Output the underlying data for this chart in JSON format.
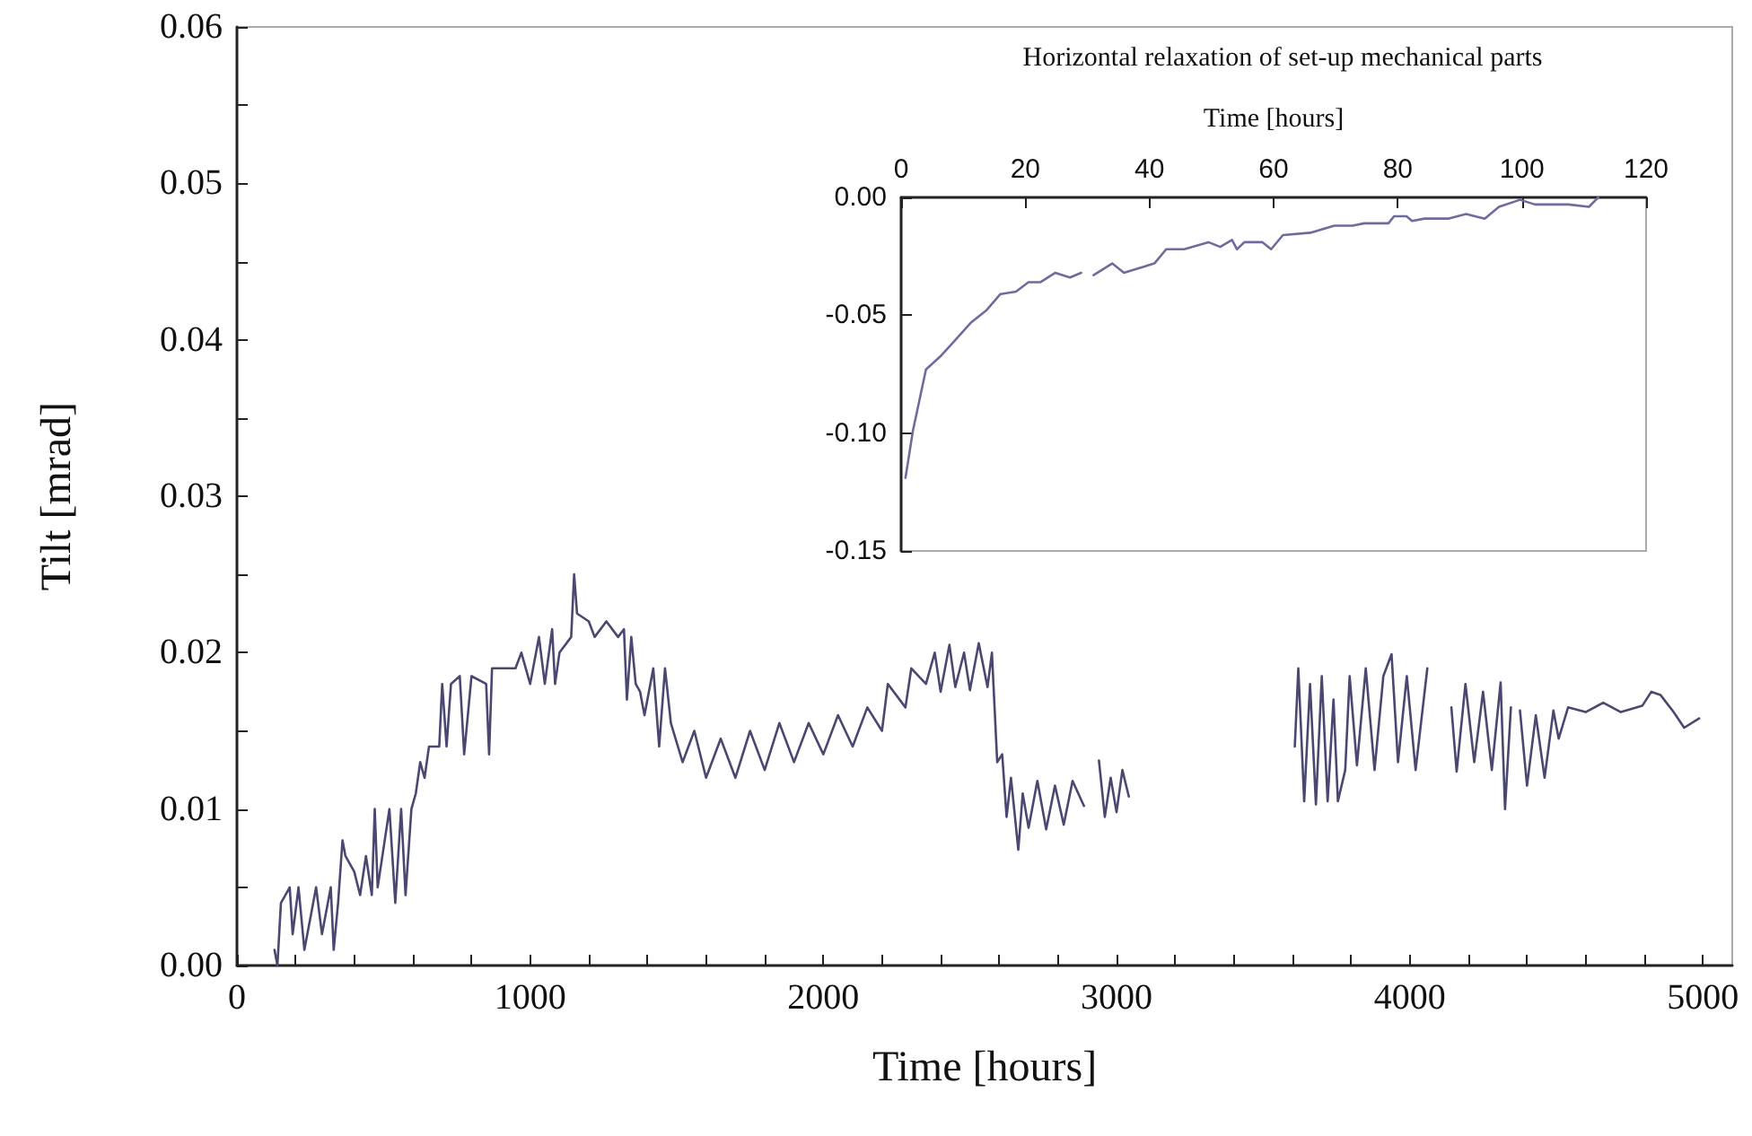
{
  "chart_data": [
    {
      "type": "line",
      "xlabel": "Time [hours]",
      "ylabel": "Tilt [mrad]",
      "xlim": [
        0,
        5100
      ],
      "xticks": [
        0,
        {
          "value": 200,
          "label": null
        },
        {
          "value": 400,
          "label": null
        },
        {
          "value": 600,
          "label": null
        },
        {
          "value": 800,
          "label": null
        },
        1000,
        {
          "value": 1200,
          "label": null
        },
        {
          "value": 1400,
          "label": null
        },
        {
          "value": 1600,
          "label": null
        },
        {
          "value": 1800,
          "label": null
        },
        2000,
        {
          "value": 2200,
          "label": null
        },
        {
          "value": 2400,
          "label": null
        },
        {
          "value": 2600,
          "label": null
        },
        {
          "value": 2800,
          "label": null
        },
        3000,
        {
          "value": 3200,
          "label": null
        },
        {
          "value": 3400,
          "label": null
        },
        {
          "value": 3600,
          "label": null
        },
        {
          "value": 3800,
          "label": null
        },
        4000,
        {
          "value": 4200,
          "label": null
        },
        {
          "value": 4400,
          "label": null
        },
        {
          "value": 4600,
          "label": null
        },
        {
          "value": 4800,
          "label": null
        },
        5000
      ],
      "ylim": [
        0,
        0.06
      ],
      "yticks": [
        {
          "value": 0,
          "label": "0.00"
        },
        {
          "value": 0.005,
          "label": null
        },
        {
          "value": 0.01,
          "label": "0.01"
        },
        {
          "value": 0.015,
          "label": null
        },
        {
          "value": 0.02,
          "label": "0.02"
        },
        {
          "value": 0.025,
          "label": null
        },
        {
          "value": 0.03,
          "label": "0.03"
        },
        {
          "value": 0.035,
          "label": null
        },
        {
          "value": 0.04,
          "label": "0.04"
        },
        {
          "value": 0.045,
          "label": null
        },
        {
          "value": 0.05,
          "label": "0.05"
        },
        {
          "value": 0.055,
          "label": null
        },
        {
          "value": 0.06,
          "label": "0.06"
        }
      ],
      "series": [
        {
          "color": "#4a4870",
          "x": [
            128,
            138,
            150,
            180,
            190,
            210,
            230,
            270,
            290,
            320,
            330,
            345,
            360,
            370,
            400,
            420,
            440,
            460,
            470,
            480,
            520,
            540,
            560,
            575,
            595,
            610,
            625,
            640,
            655,
            690,
            700,
            715,
            730,
            760,
            775,
            800,
            850,
            860,
            870,
            950,
            970,
            1000,
            1030,
            1050,
            1075,
            1085,
            1100,
            1140,
            1150,
            1160,
            1200,
            1220,
            1260,
            1300,
            1320,
            1330,
            1345,
            1360,
            1375,
            1390,
            1420,
            1440,
            1460,
            1480,
            1520,
            1560,
            1600,
            1650,
            1700,
            1750,
            1800,
            1850,
            1900,
            1950,
            2000,
            2050,
            2100,
            2150,
            2200,
            2220,
            2280,
            2300,
            2350,
            2380,
            2400,
            2430,
            2450,
            2480,
            2500,
            2530,
            2560,
            2575,
            2593,
            2610,
            2625,
            2640,
            2665,
            2680,
            2700,
            2730,
            2760,
            2790,
            2820,
            2850,
            2889,
            2910,
            2940,
            2960,
            2980,
            3000,
            3020,
            3042,
            3300,
            3608,
            3620,
            3640,
            3660,
            3680,
            3700,
            3720,
            3740,
            3755,
            3780,
            3795,
            3820,
            3850,
            3880,
            3910,
            3938,
            3960,
            3990,
            4020,
            4060,
            4100,
            4142,
            4160,
            4190,
            4220,
            4250,
            4280,
            4310,
            4325,
            4345,
            4360,
            4376,
            4400,
            4430,
            4460,
            4490,
            4508,
            4540,
            4600,
            4660,
            4720,
            4793,
            4824,
            4855,
            4900,
            4936,
            4987
          ],
          "values": [
            0.001,
            0.0,
            0.004,
            0.005,
            0.002,
            0.005,
            0.001,
            0.005,
            0.002,
            0.005,
            0.001,
            0.004,
            0.008,
            0.007,
            0.006,
            0.0045,
            0.007,
            0.0045,
            0.01,
            0.005,
            0.01,
            0.004,
            0.01,
            0.0045,
            0.01,
            0.011,
            0.013,
            0.012,
            0.014,
            0.014,
            0.018,
            0.014,
            0.018,
            0.0185,
            0.0135,
            0.0185,
            0.018,
            0.0135,
            0.019,
            0.019,
            0.02,
            0.018,
            0.021,
            0.018,
            0.0215,
            0.018,
            0.02,
            0.021,
            0.025,
            0.0225,
            0.022,
            0.021,
            0.022,
            0.021,
            0.0215,
            0.017,
            0.021,
            0.018,
            0.0175,
            0.016,
            0.019,
            0.014,
            0.019,
            0.0155,
            0.013,
            0.015,
            0.012,
            0.0145,
            0.012,
            0.015,
            0.0125,
            0.0155,
            0.013,
            0.0155,
            0.0135,
            0.016,
            0.014,
            0.0165,
            0.015,
            0.018,
            0.0165,
            0.019,
            0.018,
            0.02,
            0.0175,
            0.0205,
            0.0178,
            0.02,
            0.0176,
            0.0206,
            0.0178,
            0.02,
            0.013,
            0.0135,
            0.0095,
            0.012,
            0.0074,
            0.011,
            0.0088,
            0.0118,
            0.0087,
            0.0115,
            0.009,
            0.0118,
            0.0102,
            null,
            0.0131,
            0.0095,
            0.012,
            0.0098,
            0.0125,
            0.0108,
            null,
            0.014,
            0.019,
            0.0105,
            0.018,
            0.0103,
            0.0185,
            0.0105,
            0.017,
            0.0105,
            0.0125,
            0.0185,
            0.0128,
            0.019,
            0.0125,
            0.0185,
            0.0199,
            0.013,
            0.0185,
            0.0125,
            0.019,
            null,
            0.0165,
            0.0124,
            0.018,
            0.013,
            0.0175,
            0.0125,
            0.0181,
            0.01,
            0.0165,
            null,
            0.0163,
            0.0115,
            0.016,
            0.012,
            0.0163,
            0.0145,
            0.0165,
            0.0162,
            0.0168,
            0.0162,
            0.0166,
            0.0175,
            0.0173,
            0.0162,
            0.0152,
            0.0158
          ]
        }
      ]
    },
    {
      "type": "line",
      "title": "Horizontal relaxation of set-up mechanical parts",
      "xlabel": "Time [hours]",
      "xlim": [
        0,
        120
      ],
      "xticks": [
        0,
        20,
        40,
        60,
        80,
        100,
        120
      ],
      "ylim": [
        -0.15,
        0
      ],
      "yticks": [
        {
          "value": -0.15,
          "label": "-0.15"
        },
        {
          "value": -0.1,
          "label": "-0.10"
        },
        {
          "value": -0.05,
          "label": "-0.05"
        },
        {
          "value": 0,
          "label": "0.00"
        }
      ],
      "series": [
        {
          "color": "#6e6c9c",
          "x": [
            0.7,
            1.9,
            4,
            6.5,
            8.9,
            11.3,
            13.7,
            16,
            18.5,
            20.5,
            22.4,
            24.8,
            27.2,
            29,
            30,
            31,
            34,
            35.9,
            40.8,
            42.7,
            45.6,
            49.5,
            51.4,
            53.3,
            54.1,
            55.3,
            58.2,
            59.6,
            61.5,
            65.9,
            69.8,
            72.7,
            74.6,
            78.5,
            79.4,
            81.4,
            82.3,
            84.3,
            88.1,
            91,
            94,
            96.3,
            99.7,
            102.1,
            107.5,
            110.8,
            112.3
          ],
          "values": [
            -0.119,
            -0.099,
            -0.073,
            -0.067,
            -0.06,
            -0.053,
            -0.048,
            -0.041,
            -0.04,
            -0.036,
            -0.036,
            -0.032,
            -0.034,
            -0.032,
            null,
            -0.033,
            -0.028,
            -0.032,
            -0.028,
            -0.022,
            -0.022,
            -0.019,
            -0.021,
            -0.018,
            -0.022,
            -0.019,
            -0.019,
            -0.022,
            -0.016,
            -0.015,
            -0.012,
            -0.012,
            -0.011,
            -0.011,
            -0.008,
            -0.008,
            -0.01,
            -0.009,
            -0.009,
            -0.007,
            -0.009,
            -0.004,
            -0.001,
            -0.003,
            -0.003,
            -0.004,
            0
          ]
        }
      ]
    }
  ]
}
